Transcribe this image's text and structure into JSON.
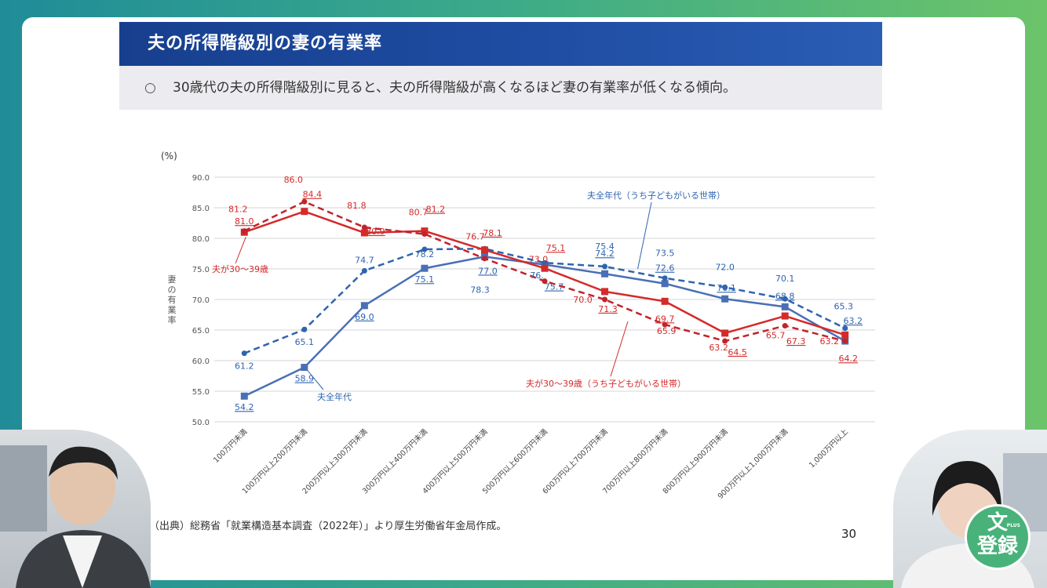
{
  "header": {
    "title": "夫の所得階級別の妻の有業率",
    "bullet": "○",
    "summary": "30歳代の夫の所得階級別に見ると、夫の所得階級が高くなるほど妻の有業率が低くなる傾向。"
  },
  "chart_data": {
    "type": "line",
    "title": "",
    "unit_label": "(%)",
    "ylabel": "妻の有業率",
    "xlabel": "",
    "ylim": [
      50,
      90
    ],
    "yticks": [
      "50.0",
      "55.0",
      "60.0",
      "65.0",
      "70.0",
      "75.0",
      "80.0",
      "85.0",
      "90.0"
    ],
    "grid": true,
    "legend": "inline-callouts",
    "categories": [
      "100万円未満",
      "100万円以上200万円未満",
      "200万円以上300万円未満",
      "300万円以上400万円未満",
      "400万円以上500万円未満",
      "500万円以上600万円未満",
      "600万円以上700万円未満",
      "700万円以上800万円未満",
      "800万円以上900万円未満",
      "900万円以上1,000万円未満",
      "1,000万円以上"
    ],
    "series": [
      {
        "name": "夫全年代",
        "color": "#4a6fb5",
        "dash": false,
        "marker": "square",
        "values": [
          54.2,
          58.9,
          69.0,
          75.1,
          77.0,
          75.7,
          74.2,
          72.6,
          70.1,
          68.8,
          63.2
        ]
      },
      {
        "name": "夫全年代（うち子どもがいる世帯）",
        "color": "#2f64b0",
        "dash": true,
        "marker": "circle",
        "values": [
          61.2,
          65.1,
          74.7,
          78.2,
          78.3,
          76.0,
          75.4,
          73.5,
          72.0,
          70.1,
          65.3
        ]
      },
      {
        "name": "夫が30～39歳",
        "color": "#d42a2a",
        "dash": false,
        "marker": "square",
        "values": [
          81.0,
          84.4,
          80.9,
          81.2,
          78.1,
          75.1,
          71.3,
          69.7,
          64.5,
          67.3,
          64.2
        ]
      },
      {
        "name": "夫が30～39歳（うち子どもがいる世帯）",
        "color": "#c0242c",
        "dash": true,
        "marker": "circle",
        "values": [
          81.2,
          86.0,
          81.8,
          80.7,
          76.7,
          73.0,
          70.0,
          65.9,
          63.2,
          65.7,
          63.2
        ]
      }
    ],
    "labels": {
      "s0": [
        "54.2",
        "58.9",
        "69.0",
        "75.1",
        "77.0",
        "75.7",
        "74.2",
        "72.6",
        "70.1",
        "68.8",
        "63.2"
      ],
      "s1": [
        "61.2",
        "65.1",
        "74.7",
        "78.2",
        "78.3",
        "76.",
        "75.4",
        "73.5",
        "72.0",
        "70.1",
        "65.3"
      ],
      "s2": [
        "81.0",
        "84.4",
        "80.9",
        "81.2",
        "78.1",
        "75.1",
        "71.3",
        "69.7",
        "64.5",
        "67.3",
        "64.2"
      ],
      "s3": [
        "81.2",
        "86.0",
        "81.8",
        "80.7",
        "76.7",
        "73.0",
        "70.0",
        "65.9",
        "63.2",
        "65.7",
        "63.2"
      ]
    },
    "callouts": {
      "blue_solid": "夫全年代",
      "blue_dashed": "夫全年代（うち子どもがいる世帯）",
      "red_solid": "夫が30～39歳",
      "red_dashed": "夫が30～39歳（うち子どもがいる世帯）"
    }
  },
  "footer": {
    "source": "（出典）総務省「就業構造基本調査（2022年）」より厚生労働省年金局作成。",
    "page": "30"
  },
  "logo": {
    "line1": "文",
    "line2": "登録",
    "small": "PLUS"
  }
}
